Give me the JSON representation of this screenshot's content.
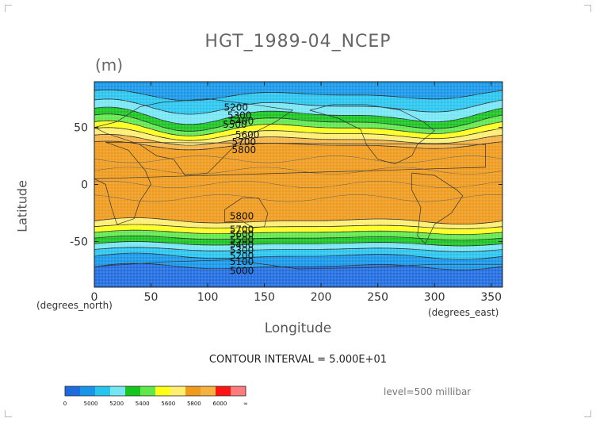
{
  "chart_data": {
    "type": "heatmap",
    "title": "HGT_1989-04_NCEP",
    "units": "(m)",
    "xlabel": "Longitude",
    "ylabel": "Latitude",
    "x_unit_label": "(degrees_east)",
    "y_unit_label": "(degrees_north)",
    "xlim": [
      0,
      360
    ],
    "ylim": [
      -90,
      90
    ],
    "x_ticks": [
      0,
      50,
      100,
      150,
      200,
      250,
      300,
      350
    ],
    "y_ticks": [
      -50,
      0,
      50
    ],
    "contour_interval_text": "CONTOUR INTERVAL = 5.000E+01",
    "level_text": "level=500 millibar",
    "colorbar": {
      "tick_labels": [
        "0",
        "5000",
        "5200",
        "5400",
        "5600",
        "5800",
        "6000",
        "∞"
      ],
      "colors": [
        "#1e6be0",
        "#1596e8",
        "#27c4ee",
        "#74e6f4",
        "#17c51f",
        "#5fe84a",
        "#ffff18",
        "#ffef70",
        "#ef9a1a",
        "#f6b23f",
        "#ff1414",
        "#ff7c7c"
      ]
    },
    "contour_labels": [
      {
        "text": "5200",
        "lon": 125,
        "lat": 67
      },
      {
        "text": "5300",
        "lon": 128,
        "lat": 60
      },
      {
        "text": "5400",
        "lon": 130,
        "lat": 55
      },
      {
        "text": "5500",
        "lon": 124,
        "lat": 52
      },
      {
        "text": "5600",
        "lon": 135,
        "lat": 43
      },
      {
        "text": "5700",
        "lon": 132,
        "lat": 37
      },
      {
        "text": "5800",
        "lon": 132,
        "lat": 30
      },
      {
        "text": "5800",
        "lon": 130,
        "lat": -28
      },
      {
        "text": "5700",
        "lon": 130,
        "lat": -40
      },
      {
        "text": "5600",
        "lon": 130,
        "lat": -44
      },
      {
        "text": "5500",
        "lon": 130,
        "lat": -49
      },
      {
        "text": "5400",
        "lon": 130,
        "lat": -53
      },
      {
        "text": "5300",
        "lon": 130,
        "lat": -58
      },
      {
        "text": "5200",
        "lon": 130,
        "lat": -63
      },
      {
        "text": "5100",
        "lon": 130,
        "lat": -68
      },
      {
        "text": "5000",
        "lon": 130,
        "lat": -76
      }
    ],
    "bands_north": [
      {
        "lat_mean": 34,
        "amp": 4,
        "phase": 40,
        "color": "#f6b23f"
      },
      {
        "lat_mean": 39,
        "amp": 5,
        "phase": 40,
        "color": "#ffef70"
      },
      {
        "lat_mean": 44,
        "amp": 6,
        "phase": 40,
        "color": "#ffff18"
      },
      {
        "lat_mean": 49,
        "amp": 7,
        "phase": 40,
        "color": "#5fe84a"
      },
      {
        "lat_mean": 54,
        "amp": 8,
        "phase": 40,
        "color": "#17c51f"
      },
      {
        "lat_mean": 60,
        "amp": 8,
        "phase": 40,
        "color": "#74e6f4"
      },
      {
        "lat_mean": 68,
        "amp": 7,
        "phase": 40,
        "color": "#27c4ee"
      },
      {
        "lat_mean": 78,
        "amp": 5,
        "phase": 40,
        "color": "#1596e8"
      }
    ],
    "bands_south": [
      {
        "lat_mean": -32,
        "amp": 3,
        "phase": 0,
        "color": "#ffef70"
      },
      {
        "lat_mean": -37,
        "amp": 2,
        "phase": 0,
        "color": "#ffff18"
      },
      {
        "lat_mean": -42,
        "amp": 2,
        "phase": 0,
        "color": "#5fe84a"
      },
      {
        "lat_mean": -47,
        "amp": 2,
        "phase": 0,
        "color": "#17c51f"
      },
      {
        "lat_mean": -52,
        "amp": 2,
        "phase": 0,
        "color": "#74e6f4"
      },
      {
        "lat_mean": -57,
        "amp": 2,
        "phase": 0,
        "color": "#27c4ee"
      },
      {
        "lat_mean": -63,
        "amp": 3,
        "phase": 0,
        "color": "#1596e8"
      },
      {
        "lat_mean": -72,
        "amp": 3,
        "phase": 0,
        "color": "#1e6be0"
      }
    ],
    "background_color": "#ef9a1a",
    "grid": true
  }
}
